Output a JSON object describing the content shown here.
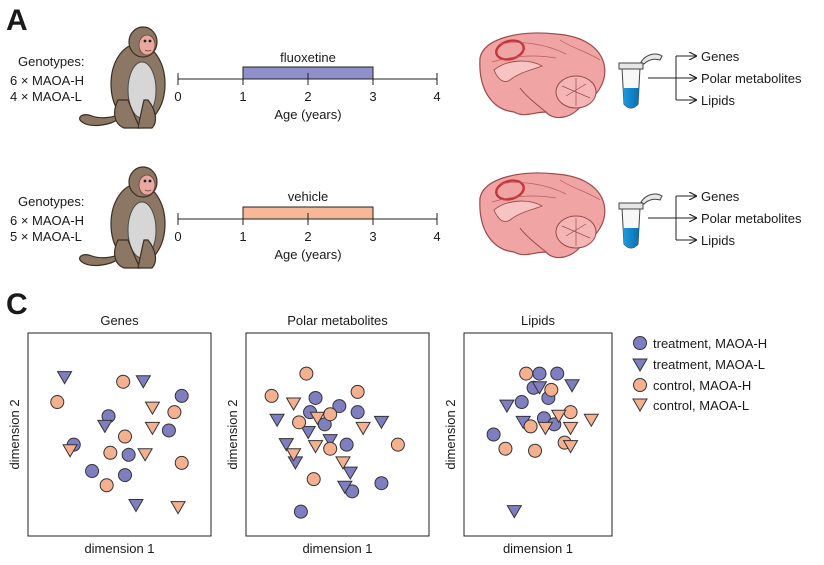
{
  "panel_a": {
    "letter": "A",
    "rows": [
      {
        "genotypes_label": "Genotypes:",
        "genotype_lines": [
          "6 × MAOA-H",
          "4 × MAOA-L"
        ],
        "treatment": "fluoxetine",
        "treatment_color": "#8f8fc9",
        "ticks": [
          "0",
          "1",
          "2",
          "3",
          "4"
        ],
        "bar_range": [
          1,
          3
        ],
        "axis_label": "Age (years)",
        "outputs": [
          "Genes",
          "Polar metabolites",
          "Lipids"
        ]
      },
      {
        "genotypes_label": "Genotypes:",
        "genotype_lines": [
          "6 × MAOA-H",
          "5 × MAOA-L"
        ],
        "treatment": "vehicle",
        "treatment_color": "#f6b896",
        "ticks": [
          "0",
          "1",
          "2",
          "3",
          "4"
        ],
        "bar_range": [
          1,
          3
        ],
        "axis_label": "Age (years)",
        "outputs": [
          "Genes",
          "Polar metabolites",
          "Lipids"
        ]
      }
    ]
  },
  "panel_c": {
    "letter": "C",
    "xlabel": "dimension 1",
    "ylabel": "dimension 2",
    "legend": [
      {
        "label": "treatment, MAOA-H",
        "shape": "circle",
        "color": "#7e7ec0"
      },
      {
        "label": "treatment, MAOA-L",
        "shape": "triangle",
        "color": "#7e7ec0"
      },
      {
        "label": "control, MAOA-H",
        "shape": "circle",
        "color": "#f4b08f"
      },
      {
        "label": "control, MAOA-L",
        "shape": "triangle",
        "color": "#f4b08f"
      }
    ]
  },
  "chart_data": [
    {
      "type": "scatter",
      "title": "Genes",
      "xlabel": "dimension 1",
      "ylabel": "dimension 2",
      "xlim": [
        0,
        1
      ],
      "ylim": [
        0,
        1
      ],
      "series": [
        {
          "name": "treatment, MAOA-H",
          "points": [
            [
              0.25,
              0.45
            ],
            [
              0.44,
              0.59
            ],
            [
              0.55,
              0.4
            ],
            [
              0.35,
              0.32
            ],
            [
              0.53,
              0.3
            ],
            [
              0.84,
              0.69
            ],
            [
              0.77,
              0.52
            ]
          ]
        },
        {
          "name": "treatment, MAOA-L",
          "points": [
            [
              0.2,
              0.78
            ],
            [
              0.63,
              0.76
            ],
            [
              0.42,
              0.54
            ],
            [
              0.59,
              0.15
            ]
          ]
        },
        {
          "name": "control, MAOA-H",
          "points": [
            [
              0.16,
              0.66
            ],
            [
              0.52,
              0.76
            ],
            [
              0.45,
              0.41
            ],
            [
              0.53,
              0.49
            ],
            [
              0.8,
              0.61
            ],
            [
              0.84,
              0.36
            ],
            [
              0.43,
              0.25
            ]
          ]
        },
        {
          "name": "control, MAOA-L",
          "points": [
            [
              0.23,
              0.42
            ],
            [
              0.68,
              0.63
            ],
            [
              0.68,
              0.53
            ],
            [
              0.64,
              0.4
            ],
            [
              0.82,
              0.14
            ]
          ]
        }
      ]
    },
    {
      "type": "scatter",
      "title": "Polar metabolites",
      "xlabel": "dimension 1",
      "ylabel": "dimension 2",
      "xlim": [
        0,
        1
      ],
      "ylim": [
        0,
        1
      ],
      "series": [
        {
          "name": "treatment, MAOA-H",
          "points": [
            [
              0.38,
              0.68
            ],
            [
              0.35,
              0.61
            ],
            [
              0.51,
              0.64
            ],
            [
              0.61,
              0.61
            ],
            [
              0.43,
              0.55
            ],
            [
              0.55,
              0.45
            ],
            [
              0.74,
              0.26
            ],
            [
              0.58,
              0.22
            ],
            [
              0.3,
              0.12
            ]
          ]
        },
        {
          "name": "treatment, MAOA-L",
          "points": [
            [
              0.17,
              0.57
            ],
            [
              0.22,
              0.45
            ],
            [
              0.34,
              0.51
            ],
            [
              0.46,
              0.47
            ],
            [
              0.27,
              0.36
            ],
            [
              0.54,
              0.24
            ],
            [
              0.57,
              0.31
            ],
            [
              0.74,
              0.56
            ]
          ]
        },
        {
          "name": "control, MAOA-H",
          "points": [
            [
              0.33,
              0.8
            ],
            [
              0.14,
              0.69
            ],
            [
              0.29,
              0.56
            ],
            [
              0.46,
              0.6
            ],
            [
              0.61,
              0.71
            ],
            [
              0.83,
              0.45
            ],
            [
              0.37,
              0.28
            ],
            [
              0.46,
              0.43
            ]
          ]
        },
        {
          "name": "control, MAOA-L",
          "points": [
            [
              0.26,
              0.65
            ],
            [
              0.39,
              0.58
            ],
            [
              0.38,
              0.44
            ],
            [
              0.26,
              0.4
            ],
            [
              0.53,
              0.36
            ],
            [
              0.64,
              0.53
            ]
          ]
        }
      ]
    },
    {
      "type": "scatter",
      "title": "Lipids",
      "xlabel": "dimension 1",
      "ylabel": "dimension 2",
      "xlim": [
        0,
        1
      ],
      "ylim": [
        0,
        1
      ],
      "series": [
        {
          "name": "treatment, MAOA-H",
          "points": [
            [
              0.51,
              0.8
            ],
            [
              0.63,
              0.8
            ],
            [
              0.47,
              0.73
            ],
            [
              0.57,
              0.68
            ],
            [
              0.39,
              0.66
            ],
            [
              0.54,
              0.58
            ],
            [
              0.61,
              0.55
            ],
            [
              0.2,
              0.5
            ]
          ]
        },
        {
          "name": "treatment, MAOA-L",
          "points": [
            [
              0.51,
              0.73
            ],
            [
              0.73,
              0.74
            ],
            [
              0.29,
              0.64
            ],
            [
              0.4,
              0.56
            ],
            [
              0.34,
              0.12
            ]
          ]
        },
        {
          "name": "control, MAOA-H",
          "points": [
            [
              0.42,
              0.8
            ],
            [
              0.59,
              0.72
            ],
            [
              0.72,
              0.61
            ],
            [
              0.45,
              0.54
            ],
            [
              0.28,
              0.43
            ],
            [
              0.48,
              0.42
            ],
            [
              0.68,
              0.46
            ]
          ]
        },
        {
          "name": "control, MAOA-L",
          "points": [
            [
              0.55,
              0.53
            ],
            [
              0.64,
              0.59
            ],
            [
              0.72,
              0.53
            ],
            [
              0.86,
              0.57
            ],
            [
              0.72,
              0.44
            ]
          ]
        }
      ]
    }
  ]
}
